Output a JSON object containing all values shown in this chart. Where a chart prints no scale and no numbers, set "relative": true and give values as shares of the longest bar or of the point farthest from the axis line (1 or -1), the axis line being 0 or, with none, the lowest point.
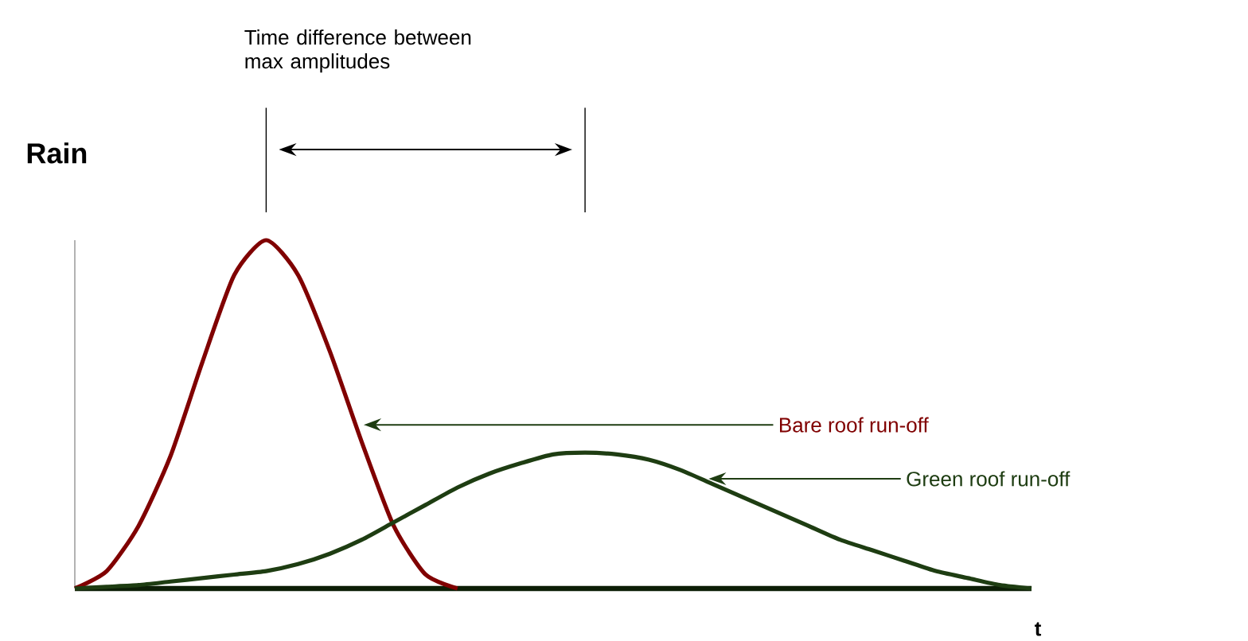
{
  "chart_data": {
    "type": "line",
    "relative": true,
    "xlabel": "t",
    "ylabel": "Rain",
    "legend": false,
    "marker": "none",
    "line_style": "solid",
    "annotations": [
      "Time difference between max amplitudes"
    ],
    "categories": [
      null,
      null,
      null,
      null,
      null,
      null,
      null,
      null,
      null,
      null,
      null,
      null,
      null,
      null,
      null,
      null,
      null,
      null,
      null,
      null,
      null,
      null,
      null,
      null,
      null,
      null,
      null,
      null,
      null,
      null,
      null
    ],
    "series": [
      {
        "name": "Bare roof run-off",
        "color": "#800000",
        "values": [
          0,
          0.05,
          0.18,
          0.38,
          0.65,
          0.9,
          1,
          0.9,
          0.68,
          0.42,
          0.18,
          0.04,
          0,
          null,
          null,
          null,
          null,
          null,
          null,
          null,
          null,
          null,
          null,
          null,
          null,
          null,
          null,
          null,
          null,
          null,
          null
        ]
      },
      {
        "name": "Green roof run-off",
        "color": "#1e3d12",
        "values": [
          0,
          0.005,
          0.01,
          0.02,
          0.03,
          0.04,
          0.05,
          0.07,
          0.1,
          0.14,
          0.19,
          0.24,
          0.29,
          0.33,
          0.36,
          0.385,
          0.39,
          0.385,
          0.37,
          0.34,
          0.3,
          0.26,
          0.22,
          0.18,
          0.14,
          0.11,
          0.08,
          0.05,
          0.03,
          0.01,
          0
        ]
      }
    ]
  }
}
